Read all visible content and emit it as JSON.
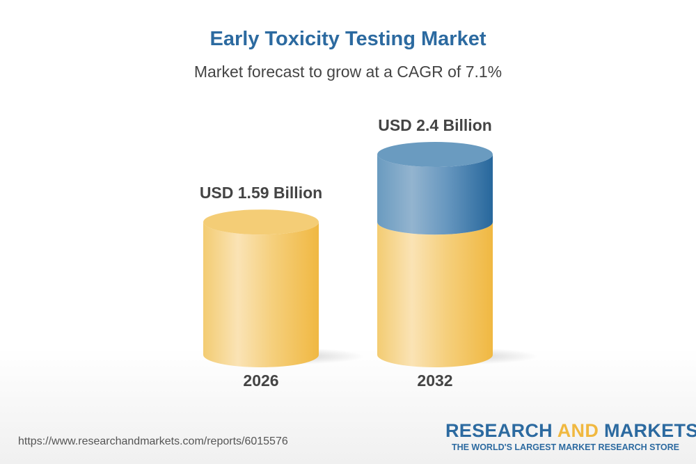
{
  "chart_data": {
    "type": "bar",
    "title": "Early Toxicity Testing Market",
    "subtitle": "Market forecast to grow at a CAGR of 7.1%",
    "categories": [
      "2026",
      "2032"
    ],
    "values": [
      1.59,
      2.4
    ],
    "data_labels": [
      "USD 1.59 Billion",
      "USD 2.4 Billion"
    ],
    "unit": "USD Billion",
    "style": "3d-cylinder",
    "grid": false,
    "colors": {
      "base": "#f2c35a",
      "growth": "#2c6aa0"
    }
  },
  "footer": {
    "url": "https://www.researchandmarkets.com/reports/6015576",
    "logo_part1": "RESEARCH",
    "logo_part2": "AND",
    "logo_part3": "MARKETS",
    "tagline": "THE WORLD'S LARGEST MARKET RESEARCH STORE"
  }
}
